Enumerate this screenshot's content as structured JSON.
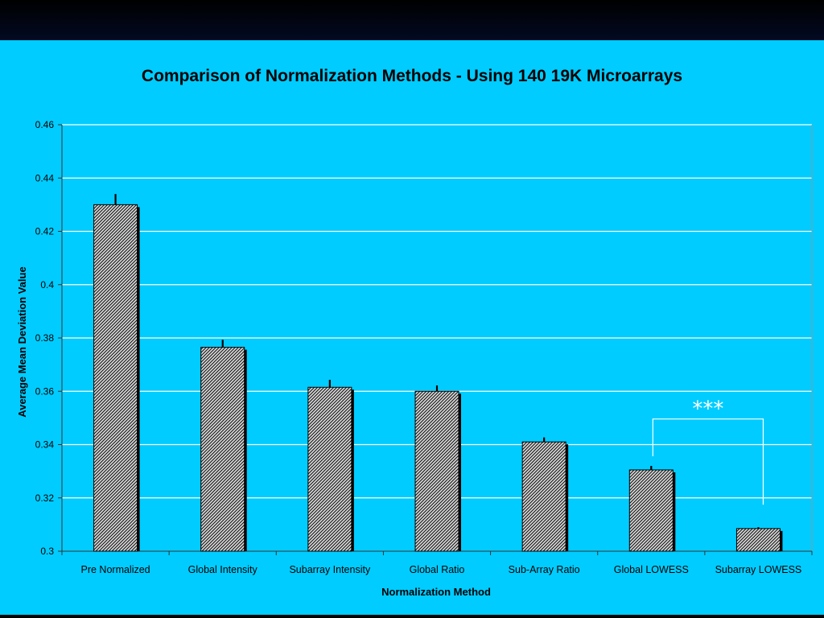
{
  "slide": {
    "background": "#00ccff",
    "header_band_color": "#000000"
  },
  "chart_data": {
    "type": "bar",
    "title": "Comparison of Normalization Methods - Using 140 19K Microarrays",
    "xlabel": "Normalization Method",
    "ylabel": "Average  Mean Deviation Value",
    "ylim": [
      0.3,
      0.46
    ],
    "yticks": [
      "0.3",
      "0.32",
      "0.34",
      "0.36",
      "0.38",
      "0.4",
      "0.42",
      "0.44",
      "0.46"
    ],
    "grid": true,
    "legend": "none",
    "categories": [
      "Pre Normalized",
      "Global Intensity",
      "Subarray Intensity",
      "Global Ratio",
      "Sub-Array Ratio",
      "Global LOWESS",
      "Subarray LOWESS"
    ],
    "values": [
      0.43,
      0.3765,
      0.3615,
      0.36,
      0.341,
      0.3305,
      0.3085
    ],
    "errors": [
      0.004,
      0.0028,
      0.0028,
      0.0022,
      0.0017,
      0.0015,
      0.0005
    ],
    "bar_pattern": "crosshatch",
    "bar_colors": {
      "fill": "#cccccc",
      "hatch": "#111111",
      "shadow": "#000000"
    },
    "annotations": [
      {
        "text": "***",
        "bracket_between": [
          "Global LOWESS",
          "Subarray LOWESS"
        ],
        "color": "#ffffff"
      }
    ]
  }
}
